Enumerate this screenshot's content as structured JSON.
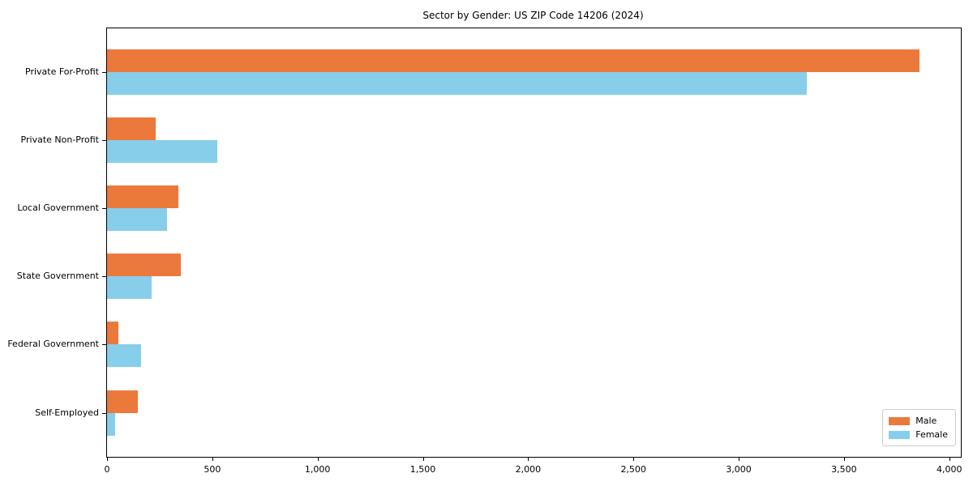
{
  "chart_data": {
    "type": "bar",
    "orientation": "horizontal",
    "title": "Sector by Gender: US ZIP Code 14206 (2024)",
    "categories": [
      "Private For-Profit",
      "Private Non-Profit",
      "Local Government",
      "State Government",
      "Federal Government",
      "Self-Employed"
    ],
    "series": [
      {
        "name": "Male",
        "color": "#ec793c",
        "values": [
          3860,
          230,
          340,
          350,
          55,
          145
        ]
      },
      {
        "name": "Female",
        "color": "#87ceeb",
        "values": [
          3325,
          525,
          285,
          210,
          160,
          40
        ]
      }
    ],
    "xlabel": "",
    "ylabel": "",
    "xlim": [
      0,
      4055
    ],
    "x_ticks": [
      0,
      500,
      1000,
      1500,
      2000,
      2500,
      3000,
      3500,
      4000
    ],
    "x_tick_labels": [
      "0",
      "500",
      "1,000",
      "1,500",
      "2,000",
      "2,500",
      "3,000",
      "3,500",
      "4,000"
    ],
    "grid": false,
    "legend_position": "lower right",
    "background_color": "#ffffff",
    "axis_color": "#000000"
  }
}
